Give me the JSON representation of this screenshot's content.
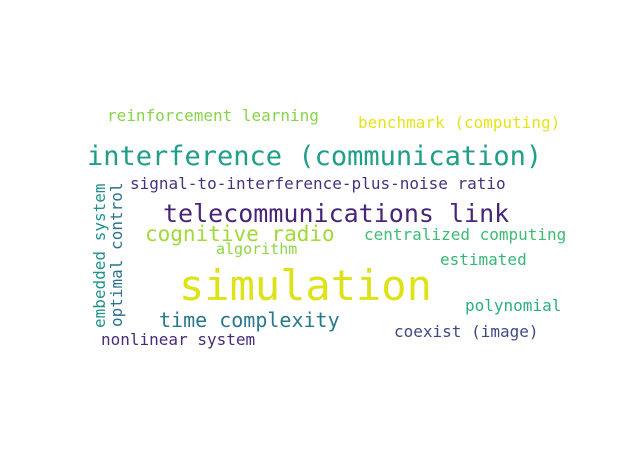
{
  "word_cloud": {
    "words": [
      {
        "text": "reinforcement learning",
        "color": "#86d549"
      },
      {
        "text": "benchmark (computing)",
        "color": "#e5e419"
      },
      {
        "text": "interference (communication)",
        "color": "#1f9e89"
      },
      {
        "text": "signal-to-interference-plus-noise ratio",
        "color": "#46337e"
      },
      {
        "text": "telecommunications link",
        "color": "#482576"
      },
      {
        "text": "cognitive radio",
        "color": "#a2da37"
      },
      {
        "text": "centralized computing",
        "color": "#3dbc74"
      },
      {
        "text": "algorithm",
        "color": "#8ed645"
      },
      {
        "text": "estimated",
        "color": "#35b779"
      },
      {
        "text": "simulation",
        "color": "#dde318"
      },
      {
        "text": "time complexity",
        "color": "#2a788e"
      },
      {
        "text": "polynomial",
        "color": "#2ab07f"
      },
      {
        "text": "coexist (image)",
        "color": "#3e4989"
      },
      {
        "text": "nonlinear system",
        "color": "#472d7b"
      },
      {
        "text": "embedded system",
        "color": "#21918c"
      },
      {
        "text": "optimal control",
        "color": "#2c728e"
      }
    ]
  }
}
